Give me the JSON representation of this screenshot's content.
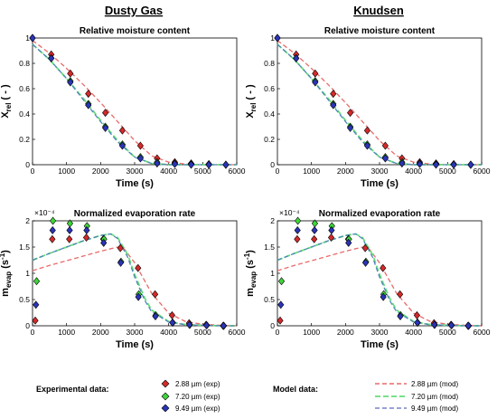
{
  "columns": [
    "Dusty Gas",
    "Knudsen"
  ],
  "colors": {
    "2.88": "#d42a2a",
    "7.20": "#3fd43a",
    "9.49": "#2a34b8",
    "mod_2.88": "#e86a6a",
    "mod_7.20": "#66dd7a",
    "mod_9.49": "#4e86b8"
  },
  "legend": {
    "exp_heading": "Experimental data:",
    "mod_heading": "Model data:",
    "exp_items": [
      "2.88 µm (exp)",
      "7.20 µm (exp)",
      "9.49 µm (exp)"
    ],
    "mod_items": [
      "2.88 µm (mod)",
      "7.20 µm (mod)",
      "9.49 µm (mod)"
    ]
  },
  "chart_data": [
    {
      "type": "scatter",
      "column": "Dusty Gas",
      "title": "Relative moisture content",
      "xlabel": "Time (s)",
      "ylabel": "X_rel ( - )",
      "xlim": [
        0,
        6000
      ],
      "ylim": [
        0,
        1
      ],
      "xticks": [
        0,
        1000,
        2000,
        3000,
        4000,
        5000,
        6000
      ],
      "yticks": [
        0,
        0.2,
        0.4,
        0.6,
        0.8,
        1
      ],
      "exp": [
        {
          "name": "2.88 µm (exp)",
          "x": [
            0,
            550,
            1110,
            1640,
            2140,
            2640,
            3170,
            3660,
            4180,
            4660,
            5180,
            5680
          ],
          "y": [
            1.0,
            0.87,
            0.72,
            0.56,
            0.41,
            0.27,
            0.15,
            0.05,
            0.02,
            0.01,
            0.005,
            0.0
          ]
        },
        {
          "name": "7.20 µm (exp)",
          "x": [
            0,
            550,
            1110,
            1640,
            2140,
            2640,
            3170,
            3660,
            4180,
            4660,
            5180,
            5680
          ],
          "y": [
            1.0,
            0.84,
            0.66,
            0.48,
            0.3,
            0.16,
            0.06,
            0.02,
            0.01,
            0.005,
            0.0,
            0.0
          ]
        },
        {
          "name": "9.49 µm (exp)",
          "x": [
            0,
            550,
            1110,
            1640,
            2140,
            2640,
            3170,
            3660,
            4180,
            4660,
            5180,
            5680
          ],
          "y": [
            1.0,
            0.84,
            0.65,
            0.47,
            0.29,
            0.15,
            0.05,
            0.01,
            0.005,
            0.0,
            0.0,
            0.0
          ]
        }
      ],
      "mod": [
        {
          "name": "2.88 µm (mod)",
          "x": [
            0,
            500,
            1000,
            1500,
            2000,
            2500,
            3000,
            3500,
            4000,
            4500,
            5000,
            5500,
            6000
          ],
          "y": [
            0.98,
            0.88,
            0.76,
            0.63,
            0.49,
            0.34,
            0.19,
            0.07,
            0.02,
            0.005,
            0.0,
            0.0,
            0.0
          ]
        },
        {
          "name": "7.20 µm (mod)",
          "x": [
            0,
            500,
            1000,
            1500,
            2000,
            2500,
            3000,
            3500,
            4000,
            4500,
            5000,
            5500,
            6000
          ],
          "y": [
            0.95,
            0.83,
            0.68,
            0.52,
            0.35,
            0.19,
            0.06,
            0.01,
            0.0,
            0.0,
            0.0,
            0.0,
            0.0
          ]
        },
        {
          "name": "9.49 µm (mod)",
          "x": [
            0,
            500,
            1000,
            1500,
            2000,
            2500,
            3000,
            3500,
            4000,
            4500,
            5000,
            5500,
            6000
          ],
          "y": [
            0.95,
            0.83,
            0.68,
            0.51,
            0.34,
            0.18,
            0.06,
            0.01,
            0.0,
            0.0,
            0.0,
            0.0,
            0.0
          ]
        }
      ]
    },
    {
      "type": "scatter",
      "column": "Knudsen",
      "title": "Relative moisture content",
      "xlabel": "Time (s)",
      "ylabel": "X_rel ( - )",
      "xlim": [
        0,
        6000
      ],
      "ylim": [
        0,
        1
      ],
      "xticks": [
        0,
        1000,
        2000,
        3000,
        4000,
        5000,
        6000
      ],
      "yticks": [
        0,
        0.2,
        0.4,
        0.6,
        0.8,
        1
      ],
      "exp": [
        {
          "name": "2.88 µm (exp)",
          "x": [
            0,
            550,
            1110,
            1640,
            2140,
            2640,
            3170,
            3660,
            4180,
            4660,
            5180,
            5680
          ],
          "y": [
            1.0,
            0.87,
            0.72,
            0.56,
            0.41,
            0.27,
            0.15,
            0.05,
            0.02,
            0.01,
            0.005,
            0.0
          ]
        },
        {
          "name": "7.20 µm (exp)",
          "x": [
            0,
            550,
            1110,
            1640,
            2140,
            2640,
            3170,
            3660,
            4180,
            4660,
            5180,
            5680
          ],
          "y": [
            1.0,
            0.84,
            0.66,
            0.48,
            0.3,
            0.16,
            0.06,
            0.02,
            0.01,
            0.005,
            0.0,
            0.0
          ]
        },
        {
          "name": "9.49 µm (exp)",
          "x": [
            0,
            550,
            1110,
            1640,
            2140,
            2640,
            3170,
            3660,
            4180,
            4660,
            5180,
            5680
          ],
          "y": [
            1.0,
            0.84,
            0.65,
            0.47,
            0.29,
            0.15,
            0.05,
            0.01,
            0.005,
            0.0,
            0.0,
            0.0
          ]
        }
      ],
      "mod": [
        {
          "name": "2.88 µm (mod)",
          "x": [
            0,
            500,
            1000,
            1500,
            2000,
            2500,
            3000,
            3500,
            4000,
            4500,
            5000,
            5500,
            6000
          ],
          "y": [
            0.98,
            0.88,
            0.76,
            0.63,
            0.49,
            0.34,
            0.19,
            0.07,
            0.02,
            0.005,
            0.0,
            0.0,
            0.0
          ]
        },
        {
          "name": "7.20 µm (mod)",
          "x": [
            0,
            500,
            1000,
            1500,
            2000,
            2500,
            3000,
            3500,
            4000,
            4500,
            5000,
            5500,
            6000
          ],
          "y": [
            0.95,
            0.83,
            0.68,
            0.52,
            0.35,
            0.19,
            0.06,
            0.01,
            0.0,
            0.0,
            0.0,
            0.0,
            0.0
          ]
        },
        {
          "name": "9.49 µm (mod)",
          "x": [
            0,
            500,
            1000,
            1500,
            2000,
            2500,
            3000,
            3500,
            4000,
            4500,
            5000,
            5500,
            6000
          ],
          "y": [
            0.95,
            0.83,
            0.68,
            0.51,
            0.34,
            0.18,
            0.06,
            0.01,
            0.0,
            0.0,
            0.0,
            0.0,
            0.0
          ]
        }
      ]
    },
    {
      "type": "scatter",
      "column": "Dusty Gas",
      "title": "Normalized evaporation rate",
      "xlabel": "Time (s)",
      "ylabel": "m_evap (s^-1)",
      "scale_label": "×10⁻⁴",
      "xlim": [
        0,
        6000
      ],
      "ylim": [
        0,
        2
      ],
      "xticks": [
        0,
        1000,
        2000,
        3000,
        4000,
        5000,
        6000
      ],
      "yticks": [
        0,
        0.5,
        1,
        1.5,
        2
      ],
      "exp": [
        {
          "name": "2.88 µm (exp)",
          "x": [
            80,
            580,
            1080,
            1580,
            2080,
            2580,
            3100,
            3600,
            4100,
            4600,
            5100,
            5600
          ],
          "y": [
            0.1,
            1.65,
            1.65,
            1.68,
            1.65,
            1.48,
            1.1,
            0.6,
            0.2,
            0.05,
            0.02,
            0.0
          ]
        },
        {
          "name": "7.20 µm (exp)",
          "x": [
            120,
            600,
            1100,
            1600,
            2100,
            2600,
            3120,
            3620,
            4120,
            4620,
            5120,
            5620
          ],
          "y": [
            0.85,
            2.0,
            1.95,
            1.9,
            1.65,
            1.22,
            0.6,
            0.2,
            0.06,
            0.02,
            0.01,
            0.0
          ]
        },
        {
          "name": "9.49 µm (exp)",
          "x": [
            100,
            590,
            1090,
            1590,
            2090,
            2590,
            3110,
            3610,
            4110,
            4610,
            5110,
            5610
          ],
          "y": [
            0.4,
            1.82,
            1.82,
            1.82,
            1.58,
            1.2,
            0.55,
            0.18,
            0.06,
            0.02,
            0.01,
            0.0
          ]
        }
      ],
      "mod": [
        {
          "name": "2.88 µm (mod)",
          "x": [
            0,
            500,
            1000,
            1500,
            2000,
            2500,
            2700,
            3000,
            3500,
            4000,
            4500,
            5000,
            5500,
            6000
          ],
          "y": [
            1.05,
            1.15,
            1.24,
            1.33,
            1.42,
            1.5,
            1.46,
            1.2,
            0.62,
            0.24,
            0.08,
            0.03,
            0.01,
            0.0
          ]
        },
        {
          "name": "7.20 µm (mod)",
          "x": [
            0,
            500,
            1000,
            1500,
            2000,
            2300,
            2500,
            2800,
            3000,
            3300,
            3500,
            4000,
            4500,
            5000,
            5500,
            6000
          ],
          "y": [
            1.25,
            1.38,
            1.5,
            1.62,
            1.72,
            1.75,
            1.68,
            1.35,
            0.98,
            0.52,
            0.3,
            0.08,
            0.02,
            0.01,
            0.0,
            0.0
          ]
        },
        {
          "name": "9.49 µm (mod)",
          "x": [
            0,
            500,
            1000,
            1500,
            2000,
            2300,
            2500,
            2800,
            3000,
            3300,
            3500,
            4000,
            4500,
            5000,
            5500,
            6000
          ],
          "y": [
            1.25,
            1.38,
            1.5,
            1.62,
            1.72,
            1.75,
            1.66,
            1.3,
            0.93,
            0.48,
            0.27,
            0.07,
            0.02,
            0.01,
            0.0,
            0.0
          ]
        }
      ]
    },
    {
      "type": "scatter",
      "column": "Knudsen",
      "title": "Normalized evaporation rate",
      "xlabel": "Time (s)",
      "ylabel": "m_evap (s^-1)",
      "scale_label": "×10⁻⁴",
      "xlim": [
        0,
        6000
      ],
      "ylim": [
        0,
        2
      ],
      "xticks": [
        0,
        1000,
        2000,
        3000,
        4000,
        5000,
        6000
      ],
      "yticks": [
        0,
        0.5,
        1,
        1.5,
        2
      ],
      "exp": [
        {
          "name": "2.88 µm (exp)",
          "x": [
            80,
            580,
            1080,
            1580,
            2080,
            2580,
            3100,
            3600,
            4100,
            4600,
            5100,
            5600
          ],
          "y": [
            0.1,
            1.65,
            1.65,
            1.68,
            1.65,
            1.48,
            1.1,
            0.6,
            0.2,
            0.05,
            0.02,
            0.0
          ]
        },
        {
          "name": "7.20 µm (exp)",
          "x": [
            120,
            600,
            1100,
            1600,
            2100,
            2600,
            3120,
            3620,
            4120,
            4620,
            5120,
            5620
          ],
          "y": [
            0.85,
            2.0,
            1.95,
            1.9,
            1.65,
            1.22,
            0.6,
            0.2,
            0.06,
            0.02,
            0.01,
            0.0
          ]
        },
        {
          "name": "9.49 µm (exp)",
          "x": [
            100,
            590,
            1090,
            1590,
            2090,
            2590,
            3110,
            3610,
            4110,
            4610,
            5110,
            5610
          ],
          "y": [
            0.4,
            1.82,
            1.82,
            1.82,
            1.58,
            1.2,
            0.55,
            0.18,
            0.06,
            0.02,
            0.01,
            0.0
          ]
        }
      ],
      "mod": [
        {
          "name": "2.88 µm (mod)",
          "x": [
            0,
            500,
            1000,
            1500,
            2000,
            2500,
            2700,
            3000,
            3500,
            4000,
            4500,
            5000,
            5500,
            6000
          ],
          "y": [
            1.05,
            1.15,
            1.24,
            1.33,
            1.42,
            1.5,
            1.46,
            1.2,
            0.62,
            0.24,
            0.08,
            0.03,
            0.01,
            0.0
          ]
        },
        {
          "name": "7.20 µm (mod)",
          "x": [
            0,
            500,
            1000,
            1500,
            2000,
            2300,
            2500,
            2800,
            3000,
            3300,
            3500,
            4000,
            4500,
            5000,
            5500,
            6000
          ],
          "y": [
            1.25,
            1.38,
            1.5,
            1.62,
            1.72,
            1.75,
            1.68,
            1.35,
            0.98,
            0.52,
            0.3,
            0.08,
            0.02,
            0.01,
            0.0,
            0.0
          ]
        },
        {
          "name": "9.49 µm (mod)",
          "x": [
            0,
            500,
            1000,
            1500,
            2000,
            2300,
            2500,
            2800,
            3000,
            3300,
            3500,
            4000,
            4500,
            5000,
            5500,
            6000
          ],
          "y": [
            1.25,
            1.38,
            1.5,
            1.62,
            1.72,
            1.75,
            1.66,
            1.3,
            0.93,
            0.48,
            0.27,
            0.07,
            0.02,
            0.01,
            0.0,
            0.0
          ]
        }
      ]
    }
  ]
}
